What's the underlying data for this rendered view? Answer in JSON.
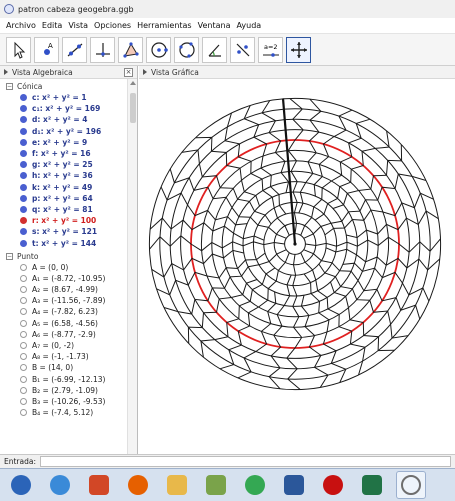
{
  "window": {
    "title": "patron cabeza geogebra.ggb"
  },
  "menu": [
    "Archivo",
    "Edita",
    "Vista",
    "Opciones",
    "Herramientas",
    "Ventana",
    "Ayuda"
  ],
  "toolbar": {
    "tools": [
      {
        "name": "move-tool-icon"
      },
      {
        "name": "point-tool-icon"
      },
      {
        "name": "line-tool-icon"
      },
      {
        "name": "perpendicular-tool-icon"
      },
      {
        "name": "polygon-tool-icon"
      },
      {
        "name": "circle-center-tool-icon"
      },
      {
        "name": "circle-three-points-tool-icon"
      },
      {
        "name": "angle-tool-icon"
      },
      {
        "name": "reflect-tool-icon"
      },
      {
        "name": "slider-tool-icon",
        "label": "a=2"
      },
      {
        "name": "move-graphics-tool-icon",
        "active": true
      }
    ]
  },
  "algebra": {
    "header": "Vista Algebraica",
    "close_glyph": "×",
    "conica_label": "Cónica",
    "conica": [
      {
        "text": "c: x² + y² = 1",
        "style": "blue"
      },
      {
        "text": "c₁: x² + y² = 169",
        "style": "blue"
      },
      {
        "text": "d: x² + y² = 4",
        "style": "blue"
      },
      {
        "text": "d₁: x² + y² = 196",
        "style": "blue"
      },
      {
        "text": "e: x² + y² = 9",
        "style": "blue"
      },
      {
        "text": "f: x² + y² = 16",
        "style": "blue"
      },
      {
        "text": "g: x² + y² = 25",
        "style": "blue"
      },
      {
        "text": "h: x² + y² = 36",
        "style": "blue"
      },
      {
        "text": "k: x² + y² = 49",
        "style": "blue"
      },
      {
        "text": "p: x² + y² = 64",
        "style": "blue"
      },
      {
        "text": "q: x² + y² = 81",
        "style": "blue"
      },
      {
        "text": "r: x² + y² = 100",
        "style": "red"
      },
      {
        "text": "s: x² + y² = 121",
        "style": "blue"
      },
      {
        "text": "t: x² + y² = 144",
        "style": "blue"
      }
    ],
    "punto_label": "Punto",
    "puntos": [
      "A = (0, 0)",
      "A₁ = (-8.72, -10.95)",
      "A₂ = (8.67, -4.99)",
      "A₃ = (-11.56, -7.89)",
      "A₄ = (-7.82, 6.23)",
      "A₅ = (6.58, -4.56)",
      "A₆ = (-8.77, -2.9)",
      "A₇ = (0, -2)",
      "A₈ = (-1, -1.73)",
      "B = (14, 0)",
      "B₁ = (-6.99, -12.13)",
      "B₂ = (2.79, -1.09)",
      "B₃ = (-10.26, -9.53)",
      "B₄ = (-7.4, 5.12)"
    ]
  },
  "graphics": {
    "header": "Vista Gráfica",
    "circle_radii": [
      1,
      2,
      3,
      4,
      5,
      6,
      7,
      8,
      9,
      10,
      11,
      12,
      13,
      14
    ],
    "highlight_radius": 10,
    "line_color": "#1a1a1a",
    "highlight_color": "#e02020"
  },
  "input": {
    "label": "Entrada:"
  },
  "taskbar": {
    "apps": [
      {
        "name": "start-button-icon",
        "color": "#2b64b8"
      },
      {
        "name": "internet-explorer-icon",
        "color": "#3a8ad8"
      },
      {
        "name": "powerpoint-icon",
        "color": "#d24726"
      },
      {
        "name": "firefox-icon",
        "color": "#e66000"
      },
      {
        "name": "file-explorer-icon",
        "color": "#e8b84a"
      },
      {
        "name": "paint-icon",
        "color": "#7aa34a"
      },
      {
        "name": "chrome-icon",
        "color": "#34a853"
      },
      {
        "name": "word-icon",
        "color": "#2b579a"
      },
      {
        "name": "record-icon",
        "color": "#c81010"
      },
      {
        "name": "excel-icon",
        "color": "#217346"
      },
      {
        "name": "geogebra-icon",
        "color": "#6e6e6e",
        "active": true
      }
    ]
  }
}
